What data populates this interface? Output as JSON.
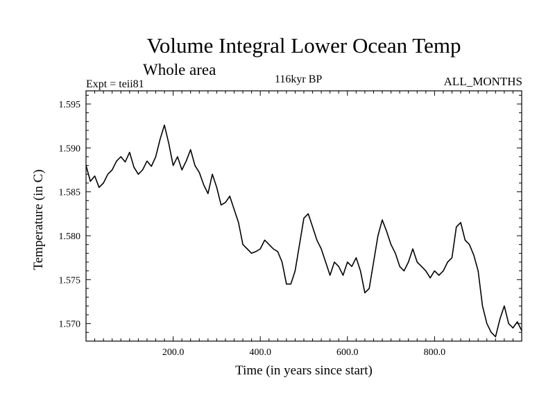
{
  "chart_data": {
    "type": "line",
    "title": "Volume Integral Lower Ocean Temp",
    "subtitle": "Whole area",
    "annotations": {
      "experiment": "Expt = teii81",
      "period": "116kyr BP",
      "months": "ALL_MONTHS"
    },
    "xlabel": "Time (in years since start)",
    "ylabel": "Temperature (in C)",
    "xlim": [
      0,
      1000
    ],
    "ylim": [
      1.568,
      1.5965
    ],
    "xticks": [
      200,
      400,
      600,
      800
    ],
    "xtick_labels": [
      "200.0",
      "400.0",
      "600.0",
      "800.0"
    ],
    "yticks": [
      1.57,
      1.575,
      1.58,
      1.585,
      1.59,
      1.595
    ],
    "ytick_labels": [
      "1.570",
      "1.575",
      "1.580",
      "1.585",
      "1.590",
      "1.595"
    ],
    "grid": false,
    "line_color": "#000000",
    "series": [
      {
        "x": [
          0,
          10,
          20,
          30,
          40,
          50,
          60,
          70,
          80,
          90,
          100,
          110,
          120,
          130,
          140,
          150,
          160,
          170,
          180,
          190,
          200,
          210,
          220,
          230,
          240,
          250,
          260,
          270,
          280,
          290,
          300,
          310,
          320,
          330,
          340,
          350,
          360,
          370,
          380,
          390,
          400,
          410,
          420,
          430,
          440,
          450,
          460,
          470,
          480,
          490,
          500,
          510,
          520,
          530,
          540,
          550,
          560,
          570,
          580,
          590,
          600,
          610,
          620,
          630,
          640,
          650,
          660,
          670,
          680,
          690,
          700,
          710,
          720,
          730,
          740,
          750,
          760,
          770,
          780,
          790,
          800,
          810,
          820,
          830,
          840,
          850,
          860,
          870,
          880,
          890,
          900,
          910,
          920,
          930,
          940,
          950,
          960,
          970,
          980,
          990,
          1000
        ],
        "values": [
          1.588,
          1.5862,
          1.5868,
          1.5855,
          1.586,
          1.587,
          1.5875,
          1.5885,
          1.589,
          1.5884,
          1.5895,
          1.5878,
          1.587,
          1.5875,
          1.5885,
          1.5879,
          1.589,
          1.591,
          1.5926,
          1.5905,
          1.588,
          1.589,
          1.5875,
          1.5885,
          1.5898,
          1.588,
          1.5872,
          1.5858,
          1.5848,
          1.587,
          1.5855,
          1.5835,
          1.5838,
          1.5845,
          1.583,
          1.5815,
          1.579,
          1.5785,
          1.578,
          1.5782,
          1.5785,
          1.5795,
          1.579,
          1.5785,
          1.5782,
          1.577,
          1.5745,
          1.5745,
          1.576,
          1.579,
          1.582,
          1.5825,
          1.581,
          1.5795,
          1.5785,
          1.577,
          1.5755,
          1.577,
          1.5765,
          1.5755,
          1.577,
          1.5765,
          1.5775,
          1.576,
          1.5735,
          1.574,
          1.577,
          1.58,
          1.5818,
          1.5805,
          1.579,
          1.578,
          1.5765,
          1.576,
          1.577,
          1.5785,
          1.577,
          1.5765,
          1.576,
          1.5752,
          1.576,
          1.5755,
          1.576,
          1.577,
          1.5775,
          1.581,
          1.5815,
          1.5795,
          1.579,
          1.5778,
          1.576,
          1.572,
          1.57,
          1.569,
          1.5685,
          1.5705,
          1.572,
          1.57,
          1.5695,
          1.5702,
          1.5692
        ]
      }
    ]
  }
}
